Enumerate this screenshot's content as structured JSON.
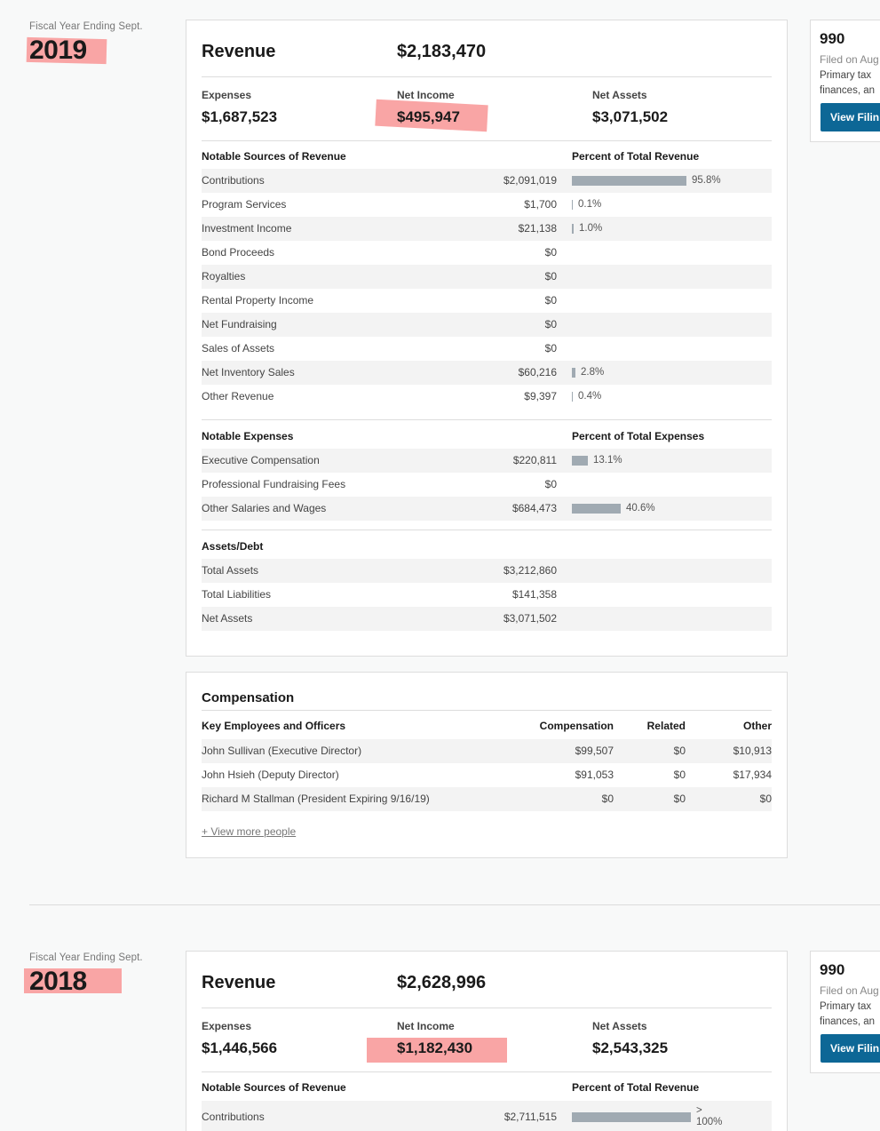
{
  "years": [
    {
      "fiscal_label": "Fiscal Year Ending Sept.",
      "year": "2019",
      "revenue_label": "Revenue",
      "revenue": "$2,183,470",
      "expenses_label": "Expenses",
      "expenses": "$1,687,523",
      "net_income_label": "Net Income",
      "net_income": "$495,947",
      "net_assets_label": "Net Assets",
      "net_assets": "$3,071,502",
      "revenue_sources": {
        "header": "Notable Sources of Revenue",
        "pct_header": "Percent of Total Revenue",
        "rows": [
          {
            "name": "Contributions",
            "amount": "$2,091,019",
            "pct": "95.8%",
            "bar": 129
          },
          {
            "name": "Program Services",
            "amount": "$1,700",
            "pct": "0.1%",
            "bar": 1
          },
          {
            "name": "Investment Income",
            "amount": "$21,138",
            "pct": "1.0%",
            "bar": 2
          },
          {
            "name": "Bond Proceeds",
            "amount": "$0",
            "pct": "",
            "bar": 0
          },
          {
            "name": "Royalties",
            "amount": "$0",
            "pct": "",
            "bar": 0
          },
          {
            "name": "Rental Property Income",
            "amount": "$0",
            "pct": "",
            "bar": 0
          },
          {
            "name": "Net Fundraising",
            "amount": "$0",
            "pct": "",
            "bar": 0
          },
          {
            "name": "Sales of Assets",
            "amount": "$0",
            "pct": "",
            "bar": 0
          },
          {
            "name": "Net Inventory Sales",
            "amount": "$60,216",
            "pct": "2.8%",
            "bar": 4
          },
          {
            "name": "Other Revenue",
            "amount": "$9,397",
            "pct": "0.4%",
            "bar": 1
          }
        ]
      },
      "expenses_section": {
        "header": "Notable Expenses",
        "pct_header": "Percent of Total Expenses",
        "rows": [
          {
            "name": "Executive Compensation",
            "amount": "$220,811",
            "pct": "13.1%",
            "bar": 18
          },
          {
            "name": "Professional Fundraising Fees",
            "amount": "$0",
            "pct": "",
            "bar": 0
          },
          {
            "name": "Other Salaries and Wages",
            "amount": "$684,473",
            "pct": "40.6%",
            "bar": 55
          }
        ]
      },
      "assets_section": {
        "header": "Assets/Debt",
        "rows": [
          {
            "name": "Total Assets",
            "amount": "$3,212,860"
          },
          {
            "name": "Total Liabilities",
            "amount": "$141,358"
          },
          {
            "name": "Net Assets",
            "amount": "$3,071,502"
          }
        ]
      },
      "compensation": {
        "title": "Compensation",
        "headers": {
          "name": "Key Employees and Officers",
          "comp": "Compensation",
          "related": "Related",
          "other": "Other"
        },
        "rows": [
          {
            "name": "John Sullivan (Executive Director)",
            "comp": "$99,507",
            "related": "$0",
            "other": "$10,913"
          },
          {
            "name": "John Hsieh (Deputy Director)",
            "comp": "$91,053",
            "related": "$0",
            "other": "$17,934"
          },
          {
            "name": "Richard M Stallman (President Expiring 9/16/19)",
            "comp": "$0",
            "related": "$0",
            "other": "$0"
          }
        ],
        "more_link": "+ View more people"
      },
      "filing": {
        "form": "990",
        "filed": "Filed on Aug",
        "desc_line1": "Primary tax",
        "desc_line2": "finances, an",
        "button": "View Filin"
      }
    },
    {
      "fiscal_label": "Fiscal Year Ending Sept.",
      "year": "2018",
      "revenue_label": "Revenue",
      "revenue": "$2,628,996",
      "expenses_label": "Expenses",
      "expenses": "$1,446,566",
      "net_income_label": "Net Income",
      "net_income": "$1,182,430",
      "net_assets_label": "Net Assets",
      "net_assets": "$2,543,325",
      "revenue_sources": {
        "header": "Notable Sources of Revenue",
        "pct_header": "Percent of Total Revenue",
        "rows": [
          {
            "name": "Contributions",
            "amount": "$2,711,515",
            "pct_line1": ">",
            "pct_line2": "100%",
            "bar": 134
          }
        ]
      },
      "filing": {
        "form": "990",
        "filed": "Filed on Aug",
        "desc_line1": "Primary tax",
        "desc_line2": "finances, an",
        "button": "View Filin"
      }
    }
  ],
  "colors": {
    "highlight": "#f9a5a5",
    "button": "#0d6796",
    "bar": "#a0aab2",
    "background": "#f8f9f9"
  }
}
